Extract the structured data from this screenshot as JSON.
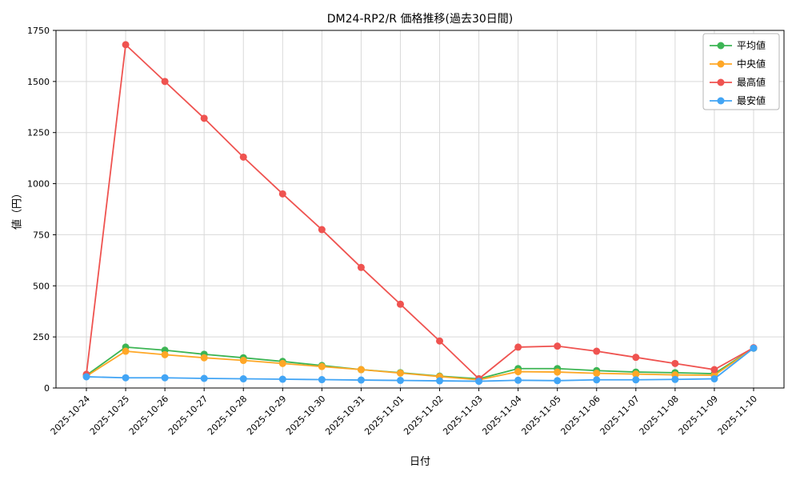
{
  "chart_data": {
    "type": "line",
    "title": "DM24-RP2/R 価格推移(過去30日間)",
    "xlabel": "日付",
    "ylabel": "値（円）",
    "ylim": [
      0,
      1750
    ],
    "yticks": [
      0,
      250,
      500,
      750,
      1000,
      1250,
      1500,
      1750
    ],
    "grid": true,
    "legend_position": "upper-right",
    "categories": [
      "2025-10-24",
      "2025-10-25",
      "2025-10-26",
      "2025-10-27",
      "2025-10-28",
      "2025-10-29",
      "2025-10-30",
      "2025-10-31",
      "2025-11-01",
      "2025-11-02",
      "2025-11-03",
      "2025-11-04",
      "2025-11-05",
      "2025-11-06",
      "2025-11-07",
      "2025-11-08",
      "2025-11-09",
      "2025-11-10"
    ],
    "series": [
      {
        "key": "average",
        "name": "平均値",
        "color": "#3cb554",
        "values": [
          62,
          200,
          185,
          165,
          148,
          130,
          110,
          90,
          75,
          58,
          45,
          95,
          95,
          85,
          78,
          75,
          70,
          195
        ]
      },
      {
        "key": "median",
        "name": "中央値",
        "color": "#ffa726",
        "values": [
          58,
          180,
          163,
          148,
          135,
          120,
          105,
          90,
          73,
          56,
          40,
          80,
          78,
          72,
          68,
          64,
          62,
          195
        ]
      },
      {
        "key": "max",
        "name": "最高値",
        "color": "#ef5350",
        "values": [
          67,
          1680,
          1500,
          1320,
          1130,
          950,
          775,
          590,
          410,
          230,
          45,
          200,
          205,
          180,
          150,
          120,
          90,
          197
        ]
      },
      {
        "key": "min",
        "name": "最安値",
        "color": "#42a5f5",
        "values": [
          55,
          50,
          50,
          47,
          45,
          43,
          41,
          39,
          37,
          35,
          33,
          38,
          36,
          40,
          40,
          42,
          45,
          195
        ]
      }
    ],
    "colors": {
      "grid": "#d9d9d9",
      "spine": "#000000",
      "legend_border": "#b5b5b5",
      "background": "#ffffff"
    }
  }
}
